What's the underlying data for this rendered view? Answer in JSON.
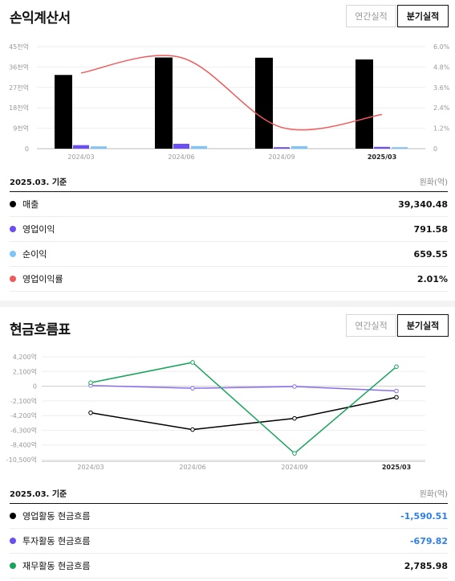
{
  "income": {
    "title": "손익계산서",
    "toggle": {
      "annual": "연간실적",
      "quarterly": "분기실적"
    },
    "basis": "2025.03. 기준",
    "unit": "원화(억)",
    "rows": [
      {
        "label": "매출",
        "value": "39,340.48",
        "color": "#000000",
        "negative": false
      },
      {
        "label": "영업이익",
        "value": "791.58",
        "color": "#6c4ef5",
        "negative": false
      },
      {
        "label": "순이익",
        "value": "659.55",
        "color": "#7fc4f7",
        "negative": false
      },
      {
        "label": "영업이익률",
        "value": "2.01%",
        "color": "#f05a5a",
        "negative": false
      }
    ]
  },
  "cash": {
    "title": "현금흐름표",
    "toggle": {
      "annual": "연간실적",
      "quarterly": "분기실적"
    },
    "basis": "2025.03. 기준",
    "unit": "원화(억)",
    "rows": [
      {
        "label": "영업활동 현금흐름",
        "value": "-1,590.51",
        "color": "#000000",
        "negative": true
      },
      {
        "label": "투자활동 현금흐름",
        "value": "-679.82",
        "color": "#6c4ef5",
        "negative": true
      },
      {
        "label": "재무활동 현금흐름",
        "value": "2,785.98",
        "color": "#19a35b",
        "negative": false
      }
    ]
  },
  "chart_data": [
    {
      "type": "bar",
      "categories": [
        "2024/03",
        "2024/06",
        "2024/09",
        "2025/03"
      ],
      "ytick_labels_left": [
        "0",
        "9천억",
        "18천억",
        "27천억",
        "36천억",
        "45천억"
      ],
      "ytick_labels_right": [
        "0",
        "1.2%",
        "2.4%",
        "3.6%",
        "4.8%",
        "6.0%"
      ],
      "ylim_left": [
        0,
        45000
      ],
      "ylim_right": [
        0,
        6.0
      ],
      "series": [
        {
          "name": "매출",
          "axis": "left",
          "kind": "bar",
          "color": "#000000",
          "values": [
            32500,
            40200,
            40100,
            39340
          ]
        },
        {
          "name": "영업이익",
          "axis": "left",
          "kind": "bar",
          "color": "#6c4ef5",
          "values": [
            1550,
            2150,
            650,
            790
          ]
        },
        {
          "name": "순이익",
          "axis": "left",
          "kind": "bar",
          "color": "#7fc4f7",
          "values": [
            1000,
            1150,
            1100,
            660
          ]
        },
        {
          "name": "영업이익률",
          "axis": "right",
          "kind": "line",
          "color": "#f05a5a",
          "values": [
            4.45,
            5.35,
            1.25,
            2.01
          ]
        }
      ],
      "grid": true
    },
    {
      "type": "line",
      "categories": [
        "2024/03",
        "2024/06",
        "2024/09",
        "2025/03"
      ],
      "ytick_labels": [
        "4,200억",
        "2,100억",
        "0",
        "-2,100억",
        "-4,200억",
        "-6,300억",
        "-8,400억",
        "-10,500억"
      ],
      "ytick_values": [
        4200,
        2100,
        0,
        -2100,
        -4200,
        -6300,
        -8400,
        -10500
      ],
      "ylim": [
        -10500,
        4200
      ],
      "series": [
        {
          "name": "영업활동 현금흐름",
          "color": "#000000",
          "values": [
            -3800,
            -6200,
            -4600,
            -1590
          ]
        },
        {
          "name": "투자활동 현금흐름",
          "color": "#8a6cf0",
          "values": [
            100,
            -300,
            -50,
            -680
          ]
        },
        {
          "name": "재무활동 현금흐름",
          "color": "#19a35b",
          "values": [
            500,
            3400,
            -9600,
            2790
          ]
        }
      ],
      "grid": true
    }
  ]
}
